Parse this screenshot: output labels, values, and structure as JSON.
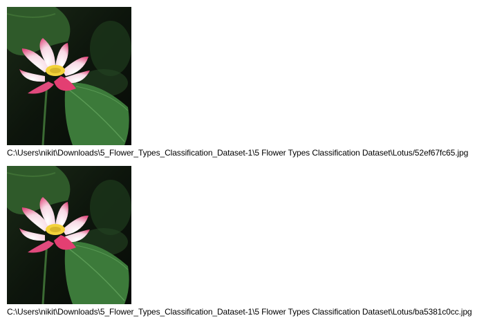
{
  "images": [
    {
      "path": "C:\\Users\\nikit\\Downloads\\5_Flower_Types_Classification_Dataset-1\\5 Flower Types Classification Dataset\\Lotus/52ef67fc65.jpg"
    },
    {
      "path": "C:\\Users\\nikit\\Downloads\\5_Flower_Types_Classification_Dataset-1\\5 Flower Types Classification Dataset\\Lotus/ba5381c0cc.jpg"
    }
  ]
}
